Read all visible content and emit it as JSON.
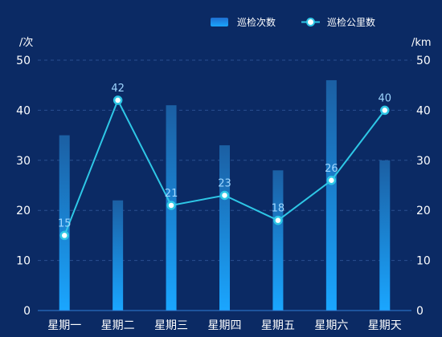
{
  "chart_data": {
    "type": "bar",
    "categories": [
      "星期一",
      "星期二",
      "星期三",
      "星期四",
      "星期五",
      "星期六",
      "星期天"
    ],
    "series": [
      {
        "name": "巡检次数",
        "type": "bar",
        "axis": "left",
        "values": [
          35,
          22,
          41,
          33,
          28,
          46,
          30
        ]
      },
      {
        "name": "巡检公里数",
        "type": "line",
        "axis": "right",
        "values": [
          15,
          42,
          21,
          23,
          18,
          26,
          40
        ]
      }
    ],
    "y_left": {
      "unit": "/次",
      "ticks": [
        0,
        10,
        20,
        30,
        40,
        50
      ],
      "range": [
        0,
        50
      ]
    },
    "y_right": {
      "unit": "/km",
      "ticks": [
        0,
        10,
        20,
        30,
        40,
        50
      ],
      "range": [
        0,
        50
      ]
    },
    "grid": true,
    "legend_position": "top-right",
    "colors": {
      "background": "#0b2a64",
      "bar_top": "#1b5fa3",
      "bar_bottom": "#1aa6ff",
      "line": "#2ec7e6",
      "grid": "#2a4f8f",
      "axis": "#2f7fd6",
      "data_label": "#9fd6ff",
      "text": "#ffffff"
    }
  }
}
